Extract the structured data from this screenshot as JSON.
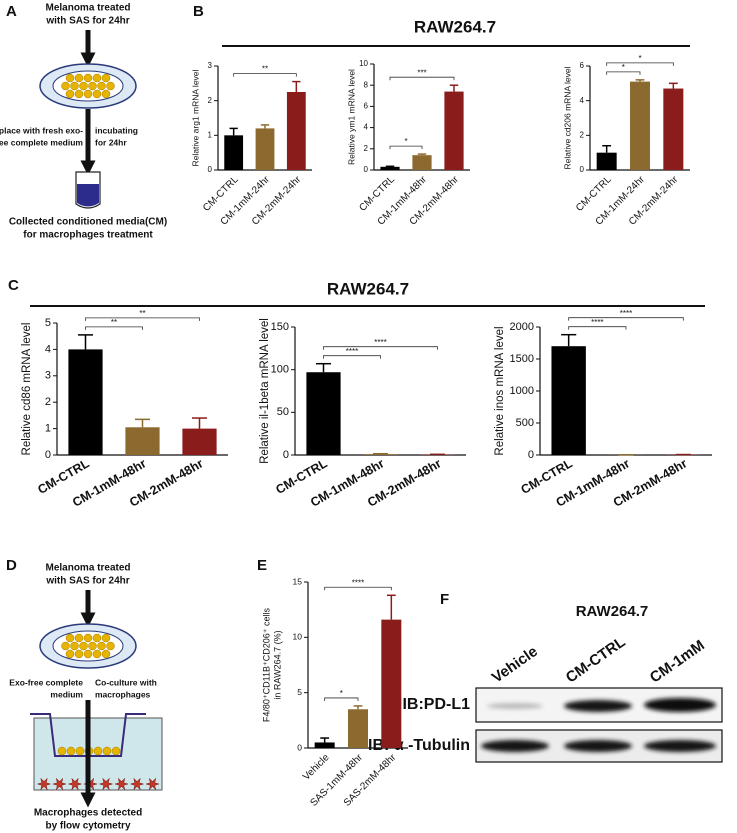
{
  "panel_labels": [
    "A",
    "B",
    "C",
    "D",
    "E",
    "F"
  ],
  "diagram_a": {
    "top": [
      "Melanoma treated",
      "with SAS for 24hr"
    ],
    "left": [
      "Replace with fresh exo-",
      "free complete medium"
    ],
    "right": [
      "incubating",
      "for 24hr"
    ],
    "bottom": [
      "Collected conditioned media(CM)",
      "for macrophages treatment"
    ]
  },
  "section_titles": [
    "RAW264.7",
    "RAW264.7"
  ],
  "chart_data": [
    {
      "type": "bar",
      "ylabel": "Relative arg1 mRNA level",
      "categories": [
        "CM-CTRL",
        "CM-1mM-24hr",
        "CM-2mM-24hr"
      ],
      "values": [
        1.0,
        1.2,
        2.25
      ],
      "errors": [
        0.2,
        0.1,
        0.3
      ],
      "colors": [
        "#000000",
        "#8c6a2f",
        "#8b1c1c"
      ],
      "ylim": [
        0,
        3
      ],
      "yticks": [
        0,
        1,
        2,
        3
      ],
      "significance": [
        {
          "label": "**",
          "bars": [
            0,
            2
          ]
        }
      ]
    },
    {
      "type": "bar",
      "ylabel": "Relative ym1 mRNA level",
      "categories": [
        "CM-CTRL",
        "CM-1mM-48hr",
        "CM-2mM-48hr"
      ],
      "values": [
        0.3,
        1.4,
        7.4
      ],
      "errors": [
        0.05,
        0.1,
        0.6
      ],
      "colors": [
        "#000000",
        "#8c6a2f",
        "#8b1c1c"
      ],
      "ylim": [
        0,
        10
      ],
      "yticks": [
        0,
        2,
        4,
        6,
        8,
        10
      ],
      "significance": [
        {
          "label": "*",
          "bars": [
            0,
            1
          ]
        },
        {
          "label": "***",
          "bars": [
            0,
            2
          ]
        }
      ]
    },
    {
      "type": "bar",
      "ylabel": "Relative cd206 mRNA level",
      "categories": [
        "CM-CTRL",
        "CM-1mM-24hr",
        "CM-2mM-24hr"
      ],
      "values": [
        1.0,
        5.1,
        4.7
      ],
      "errors": [
        0.4,
        0.1,
        0.3
      ],
      "colors": [
        "#000000",
        "#8c6a2f",
        "#8b1c1c"
      ],
      "ylim": [
        0,
        6
      ],
      "yticks": [
        0,
        2,
        4,
        6
      ],
      "significance": [
        {
          "label": "*",
          "bars": [
            0,
            1
          ]
        },
        {
          "label": "*",
          "bars": [
            0,
            2
          ]
        }
      ]
    },
    {
      "type": "bar",
      "ylabel": "Relative cd86 mRNA level",
      "categories": [
        "CM-CTRL",
        "CM-1mM-48hr",
        "CM-2mM-48hr"
      ],
      "values": [
        4.0,
        1.05,
        1.0
      ],
      "errors": [
        0.55,
        0.3,
        0.4
      ],
      "colors": [
        "#000000",
        "#8c6a2f",
        "#8b1c1c"
      ],
      "ylim": [
        0,
        5
      ],
      "yticks": [
        0,
        1,
        2,
        3,
        4,
        5
      ],
      "significance": [
        {
          "label": "**",
          "bars": [
            0,
            1
          ]
        },
        {
          "label": "**",
          "bars": [
            0,
            2
          ]
        }
      ]
    },
    {
      "type": "bar",
      "ylabel": "Relative il-1beta mRNA level",
      "categories": [
        "CM-CTRL",
        "CM-1mM-48hr",
        "CM-2mM-48hr"
      ],
      "values": [
        97,
        1,
        0.5
      ],
      "errors": [
        10,
        0.5,
        0.3
      ],
      "colors": [
        "#000000",
        "#8c6a2f",
        "#8b1c1c"
      ],
      "ylim": [
        0,
        150
      ],
      "yticks": [
        0,
        50,
        100,
        150
      ],
      "significance": [
        {
          "label": "****",
          "bars": [
            0,
            1
          ]
        },
        {
          "label": "****",
          "bars": [
            0,
            2
          ]
        }
      ]
    },
    {
      "type": "bar",
      "ylabel": "Relative inos mRNA level",
      "categories": [
        "CM-CTRL",
        "CM-1mM-48hr",
        "CM-2mM-48hr"
      ],
      "values": [
        1700,
        2,
        5
      ],
      "errors": [
        180,
        1,
        2
      ],
      "colors": [
        "#000000",
        "#8c6a2f",
        "#8b1c1c"
      ],
      "ylim": [
        0,
        2000
      ],
      "yticks": [
        0,
        500,
        1000,
        1500,
        2000
      ],
      "significance": [
        {
          "label": "****",
          "bars": [
            0,
            1
          ]
        },
        {
          "label": "****",
          "bars": [
            0,
            2
          ]
        }
      ]
    },
    {
      "type": "bar",
      "ylabel": [
        "F4/80⁺CD11B⁺CD206⁺ cells",
        "in RAW264.7 (%)"
      ],
      "categories": [
        "Vehicle",
        "SAS-1mM-48hr",
        "SAS-2mM-48hr"
      ],
      "values": [
        0.5,
        3.5,
        11.6
      ],
      "errors": [
        0.4,
        0.3,
        2.2
      ],
      "colors": [
        "#000000",
        "#8c6a2f",
        "#8b1c1c"
      ],
      "ylim": [
        0,
        15
      ],
      "yticks": [
        0,
        5,
        10,
        15
      ],
      "significance": [
        {
          "label": "*",
          "bars": [
            0,
            1
          ]
        },
        {
          "label": "****",
          "bars": [
            0,
            2
          ]
        }
      ]
    }
  ],
  "diagram_d": {
    "top": [
      "Melanoma treated",
      "with SAS for 24hr"
    ],
    "left": [
      "Exo-free complete",
      "medium"
    ],
    "right": [
      "Co-culture with",
      "macrophages"
    ],
    "bottom": [
      "Macrophages detected",
      "by flow cytometry"
    ]
  },
  "blot": {
    "title": "RAW264.7",
    "lanes": [
      "Vehicle",
      "CM-CTRL",
      "CM-1mM"
    ],
    "rows": [
      "IB:PD-L1",
      "IB: α -Tubulin"
    ]
  }
}
